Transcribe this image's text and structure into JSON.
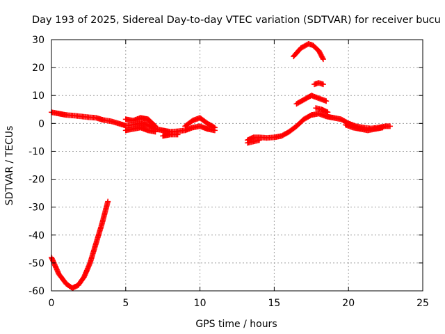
{
  "chart_data": {
    "type": "scatter",
    "title": "Day 193 of 2025, Sidereal Day-to-day VTEC variation (SDTVAR) for receiver bucu",
    "xlabel": "GPS time / hours",
    "ylabel": "SDTVAR / TECUs",
    "xlim": [
      0,
      25
    ],
    "ylim": [
      -60,
      30
    ],
    "x_ticks": [
      0,
      5,
      10,
      15,
      20,
      25
    ],
    "y_ticks": [
      -60,
      -50,
      -40,
      -30,
      -20,
      -10,
      0,
      10,
      20,
      30
    ],
    "grid": true,
    "legend": "none",
    "series": [
      {
        "name": "SDTVAR",
        "color": "#ff0000",
        "marker": "plus",
        "segments": [
          {
            "x": [
              0.0,
              0.5,
              1.0,
              1.4,
              1.8,
              2.2,
              2.6,
              3.0,
              3.4,
              3.8
            ],
            "y": [
              -48,
              -54,
              -57.5,
              -59,
              -58,
              -55,
              -50,
              -43,
              -36,
              -28
            ]
          },
          {
            "x": [
              0.0,
              0.5,
              1.0,
              1.5,
              2.0,
              2.5,
              3.0,
              3.5,
              4.0,
              4.5,
              5.0,
              5.5,
              6.0,
              6.5,
              7.0,
              7.5,
              8.0,
              8.5,
              9.0,
              9.5,
              10.0,
              10.5,
              11.0
            ],
            "y": [
              4,
              3.5,
              3,
              2.8,
              2.5,
              2.2,
              2,
              1.2,
              0.8,
              0,
              -0.8,
              -0.5,
              0,
              -0.5,
              -2,
              -2.5,
              -3,
              -2.8,
              -2.5,
              -1.5,
              -1,
              -2,
              -2.5
            ]
          },
          {
            "x": [
              5.0,
              5.5,
              6.0,
              6.5,
              7.0
            ],
            "y": [
              1.5,
              1,
              2,
              1.5,
              -1
            ]
          },
          {
            "x": [
              5.0,
              5.5,
              6.0,
              6.5,
              7.0
            ],
            "y": [
              -2.5,
              -2,
              -1.5,
              -2.5,
              -3
            ]
          },
          {
            "x": [
              7.5,
              8.0,
              8.5
            ],
            "y": [
              -4.5,
              -4,
              -4
            ]
          },
          {
            "x": [
              9.0,
              9.5,
              10.0,
              10.5,
              11.0
            ],
            "y": [
              -1,
              1,
              2,
              0,
              -1.5
            ]
          },
          {
            "x": [
              13.2,
              13.6,
              14.0,
              14.5,
              15.0,
              15.5,
              16.0,
              16.5,
              17.0,
              17.5,
              18.0,
              18.5,
              19.0,
              19.5,
              20.0,
              20.5,
              21.0,
              21.5,
              22.0,
              22.5,
              22.8
            ],
            "y": [
              -6,
              -5,
              -5,
              -5.2,
              -5,
              -4.5,
              -3,
              -1,
              1.5,
              3,
              3.5,
              2.5,
              2,
              1.5,
              0,
              -1,
              -1.5,
              -1.8,
              -1.5,
              -1,
              -1
            ]
          },
          {
            "x": [
              19.8,
              20.3,
              20.8,
              21.3,
              21.8,
              22.3
            ],
            "y": [
              -0.5,
              -1.5,
              -2,
              -2.5,
              -2,
              -1.5
            ]
          },
          {
            "x": [
              13.2,
              13.6,
              14.0
            ],
            "y": [
              -7,
              -6.5,
              -6
            ]
          },
          {
            "x": [
              16.5,
              17.0,
              17.5,
              18.0,
              18.5
            ],
            "y": [
              7,
              8.5,
              10,
              9,
              8
            ]
          },
          {
            "x": [
              17.7,
              18.0,
              18.3
            ],
            "y": [
              14,
              14.5,
              14
            ]
          },
          {
            "x": [
              16.3,
              16.8,
              17.3,
              17.6,
              18.0,
              18.3
            ],
            "y": [
              24,
              27,
              28.5,
              28,
              26,
              23
            ]
          },
          {
            "x": [
              17.8,
              18.2,
              18.6
            ],
            "y": [
              5.5,
              5,
              4
            ]
          }
        ]
      }
    ]
  }
}
